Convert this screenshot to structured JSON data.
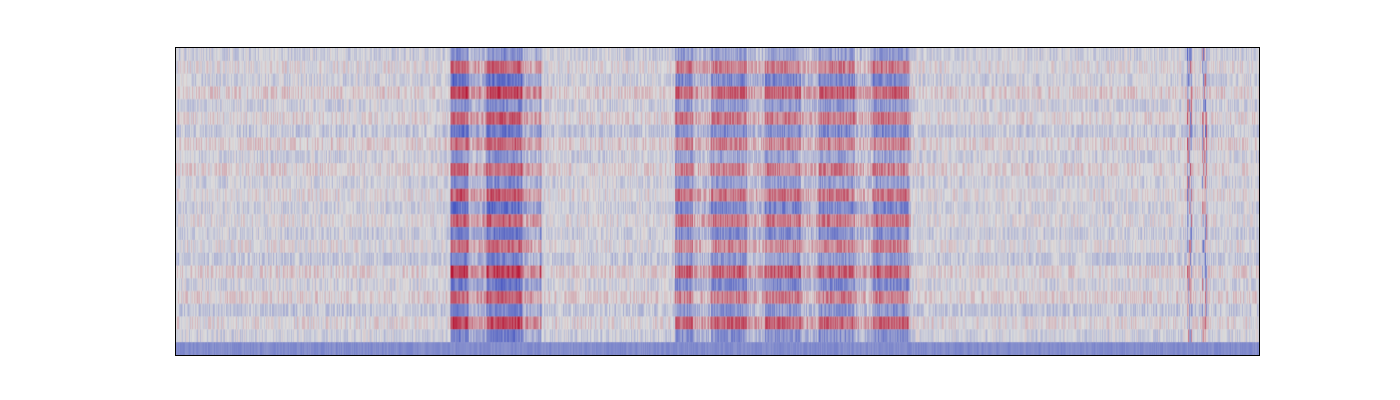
{
  "chart_data": {
    "type": "heatmap",
    "title": "",
    "xlabel": "",
    "ylabel": "",
    "colormap": "coolwarm",
    "value_range": [
      -1,
      1
    ],
    "axes_visible": false,
    "grid": false,
    "legend": "none",
    "n_rows": 24,
    "n_cols": 1085,
    "background_noise_amplitude": 0.18,
    "activity_segments": [
      {
        "col_start": 275,
        "col_end": 365,
        "amplitude": 0.75
      },
      {
        "col_start": 500,
        "col_end": 735,
        "amplitude": 0.6
      }
    ],
    "sparse_bursts": [
      {
        "col": 1015,
        "amplitude": 0.7
      },
      {
        "col": 1030,
        "amplitude": 0.6
      }
    ],
    "bottom_row_bias": {
      "row": 23,
      "value": -0.55
    }
  },
  "colors": {
    "cold": "#3b4cc0",
    "neutral": "#dddddd",
    "hot": "#b40426",
    "frame": "#000000",
    "background": "#ffffff"
  }
}
